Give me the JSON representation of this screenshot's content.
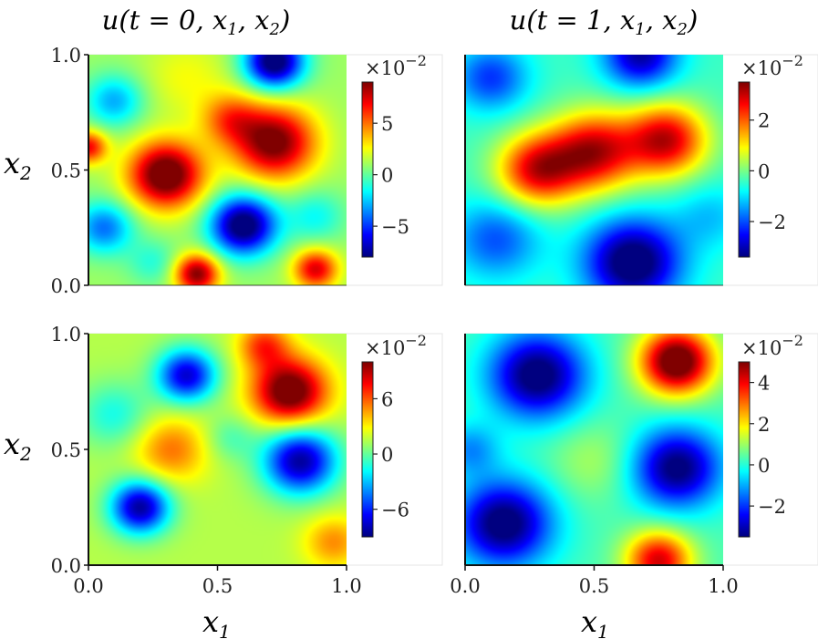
{
  "chart_data": {
    "type": "heatmap",
    "colormap": "jet",
    "column_titles": [
      {
        "main": "u(t = 0, x",
        "sub1": "1",
        "mid": ", x",
        "sub2": "2",
        "end": ")"
      },
      {
        "main": "u(t = 1, x",
        "sub1": "1",
        "mid": ", x",
        "sub2": "2",
        "end": ")"
      }
    ],
    "xlabel": {
      "main": "x",
      "sub": "1"
    },
    "ylabel": {
      "main": "x",
      "sub": "2"
    },
    "xlim": [
      0,
      1
    ],
    "ylim": [
      0,
      1
    ],
    "x_ticks": [
      "0.0",
      "0.5",
      "1.0"
    ],
    "y_ticks": [
      "0.0",
      "0.5",
      "1.0"
    ],
    "panels": [
      {
        "row": 0,
        "col": 0,
        "colorbar": {
          "exponent_label": "×10",
          "exponent": "−2",
          "vmin": -8,
          "vmax": 9,
          "ticks": [
            {
              "v": 5,
              "label": "5"
            },
            {
              "v": 0,
              "label": "0"
            },
            {
              "v": -5,
              "label": "−5"
            }
          ]
        },
        "field": {
          "base": 1.0,
          "blobs": [
            {
              "x": 0.3,
              "y": 0.48,
              "a": 9.5,
              "s": 0.1
            },
            {
              "x": 0.72,
              "y": 0.62,
              "a": 8.5,
              "s": 0.11
            },
            {
              "x": 0.55,
              "y": 0.72,
              "a": 4.0,
              "s": 0.08
            },
            {
              "x": 0.72,
              "y": 0.97,
              "a": -10.0,
              "s": 0.08
            },
            {
              "x": 0.6,
              "y": 0.26,
              "a": -10.0,
              "s": 0.09
            },
            {
              "x": 0.38,
              "y": 0.9,
              "a": 1.5,
              "s": 0.12
            },
            {
              "x": 0.06,
              "y": 0.25,
              "a": -5.0,
              "s": 0.08
            },
            {
              "x": 0.42,
              "y": 0.05,
              "a": 8.0,
              "s": 0.06
            },
            {
              "x": 0.88,
              "y": 0.07,
              "a": 6.5,
              "s": 0.06
            },
            {
              "x": 0.1,
              "y": 0.8,
              "a": -4.0,
              "s": 0.08
            },
            {
              "x": 0.0,
              "y": 0.6,
              "a": 6.0,
              "s": 0.05
            },
            {
              "x": 0.88,
              "y": 0.3,
              "a": -2.5,
              "s": 0.08
            },
            {
              "x": 0.25,
              "y": 0.1,
              "a": -2.0,
              "s": 0.07
            }
          ]
        }
      },
      {
        "row": 0,
        "col": 1,
        "colorbar": {
          "exponent_label": "×10",
          "exponent": "−2",
          "vmin": -3.4,
          "vmax": 3.5,
          "ticks": [
            {
              "v": 2,
              "label": "2"
            },
            {
              "v": 0,
              "label": "0"
            },
            {
              "v": -2,
              "label": "−2"
            }
          ]
        },
        "field": {
          "base": -0.4,
          "blobs": [
            {
              "x": 0.28,
              "y": 0.5,
              "a": 3.2,
              "s": 0.11
            },
            {
              "x": 0.5,
              "y": 0.58,
              "a": 3.4,
              "s": 0.12
            },
            {
              "x": 0.78,
              "y": 0.63,
              "a": 3.4,
              "s": 0.11
            },
            {
              "x": 0.65,
              "y": 0.1,
              "a": -3.5,
              "s": 0.13
            },
            {
              "x": 0.68,
              "y": 1.0,
              "a": -2.8,
              "s": 0.1
            },
            {
              "x": 0.1,
              "y": 0.9,
              "a": -1.8,
              "s": 0.1
            },
            {
              "x": 0.12,
              "y": 0.2,
              "a": -1.6,
              "s": 0.12
            },
            {
              "x": 0.95,
              "y": 0.3,
              "a": -0.8,
              "s": 0.1
            }
          ]
        }
      },
      {
        "row": 1,
        "col": 0,
        "colorbar": {
          "exponent_label": "×10",
          "exponent": "−2",
          "vmin": -9,
          "vmax": 10,
          "ticks": [
            {
              "v": 6,
              "label": "6"
            },
            {
              "v": 0,
              "label": "0"
            },
            {
              "v": -6,
              "label": "−6"
            }
          ]
        },
        "field": {
          "base": 1.5,
          "blobs": [
            {
              "x": 0.78,
              "y": 0.75,
              "a": 10.0,
              "s": 0.1
            },
            {
              "x": 0.68,
              "y": 0.95,
              "a": 5.0,
              "s": 0.07
            },
            {
              "x": 0.38,
              "y": 0.82,
              "a": -9.0,
              "s": 0.08
            },
            {
              "x": 0.82,
              "y": 0.45,
              "a": -10.0,
              "s": 0.1
            },
            {
              "x": 0.2,
              "y": 0.25,
              "a": -10.0,
              "s": 0.08
            },
            {
              "x": 0.32,
              "y": 0.5,
              "a": 4.0,
              "s": 0.1
            },
            {
              "x": 0.1,
              "y": 0.65,
              "a": -3.0,
              "s": 0.1
            },
            {
              "x": 0.95,
              "y": 0.1,
              "a": 3.5,
              "s": 0.08
            },
            {
              "x": 0.55,
              "y": 0.55,
              "a": -2.0,
              "s": 0.07
            }
          ]
        }
      },
      {
        "row": 1,
        "col": 1,
        "colorbar": {
          "exponent_label": "×10",
          "exponent": "−2",
          "vmin": -3.5,
          "vmax": 5,
          "ticks": [
            {
              "v": 4,
              "label": "4"
            },
            {
              "v": 2,
              "label": "2"
            },
            {
              "v": 0,
              "label": "0"
            },
            {
              "v": -2,
              "label": "−2"
            }
          ]
        },
        "field": {
          "base": 0.3,
          "blobs": [
            {
              "x": 0.82,
              "y": 0.88,
              "a": 5.5,
              "s": 0.1
            },
            {
              "x": 0.75,
              "y": 0.02,
              "a": 4.0,
              "s": 0.09
            },
            {
              "x": 0.28,
              "y": 0.82,
              "a": -4.2,
              "s": 0.13
            },
            {
              "x": 0.82,
              "y": 0.42,
              "a": -4.0,
              "s": 0.12
            },
            {
              "x": 0.15,
              "y": 0.18,
              "a": -4.2,
              "s": 0.13
            },
            {
              "x": 0.5,
              "y": 0.45,
              "a": 0.8,
              "s": 0.12
            },
            {
              "x": 0.02,
              "y": 0.5,
              "a": -1.5,
              "s": 0.08
            }
          ]
        }
      }
    ]
  }
}
